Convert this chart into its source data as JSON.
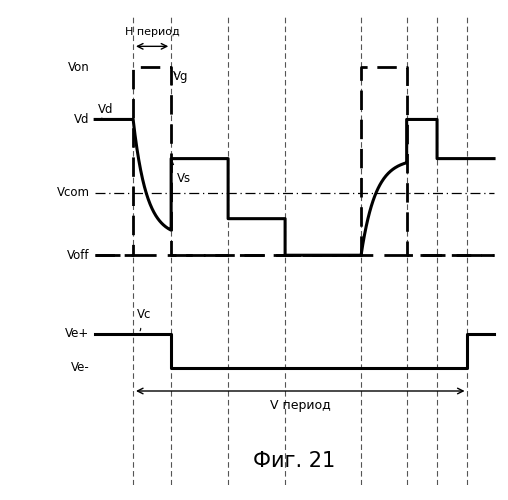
{
  "title": "Фиг. 21",
  "h_period_label": "H период",
  "v_period_label": "V период",
  "vg_label": "Vg",
  "levels": {
    "Von": 9.0,
    "Vd": 7.0,
    "Vs": 5.5,
    "Vcom": 4.2,
    "Vmid": 3.2,
    "Vlow": 2.5,
    "Voff": 1.8,
    "Ve_plus": -1.2,
    "Ve_minus": -2.5
  },
  "vline_positions": [
    1.0,
    2.0,
    3.5,
    5.0,
    7.0,
    8.2,
    9.0,
    9.8
  ],
  "background_color": "#ffffff",
  "signal_color": "#000000"
}
